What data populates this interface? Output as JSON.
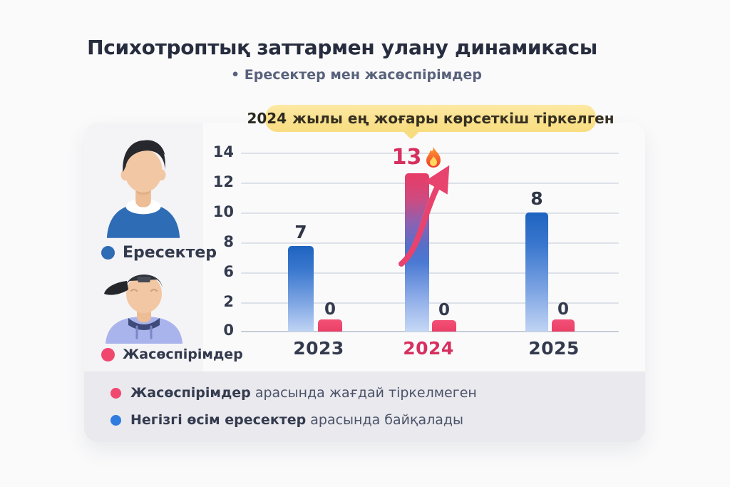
{
  "page": {
    "title": "Психотроптық заттармен улану динамикасы",
    "subtitle": "• Ересектер мен жасөспірімдер"
  },
  "callout": {
    "year_label": "2024",
    "text": "жылы ең жоғары көрсеткіш тіркелген",
    "bg_color": "#f8dd80"
  },
  "legend": {
    "adults": {
      "label": "Ересектер",
      "color": "#2e6cb5"
    },
    "teens": {
      "label": "Жасөспірімдер",
      "color": "#f0476e"
    }
  },
  "chart_data": {
    "type": "bar",
    "categories": [
      "2023",
      "2024",
      "2025"
    ],
    "series": [
      {
        "name": "Ересектер",
        "values": [
          7,
          13,
          8
        ],
        "color": "#2e6cb5"
      },
      {
        "name": "Жасөспірімдер",
        "values": [
          0,
          0,
          0
        ],
        "color": "#f0476e"
      }
    ],
    "yticks": [
      14,
      12,
      10,
      8,
      6,
      2,
      0
    ],
    "ylim": [
      0,
      14
    ],
    "grid": true,
    "legend_position": "left",
    "highlight": {
      "category": "2024",
      "value": 13,
      "flame_icon": true,
      "accent_color": "#d6305f"
    }
  },
  "notes": [
    {
      "dot_color": "#f0486f",
      "bold": "Жасөспірімдер",
      "rest": "арасында жағдай тіркелмеген"
    },
    {
      "dot_color": "#2e7ce0",
      "bold": "Негізгі өсім ересектер",
      "rest": "арасында байқалады"
    }
  ]
}
